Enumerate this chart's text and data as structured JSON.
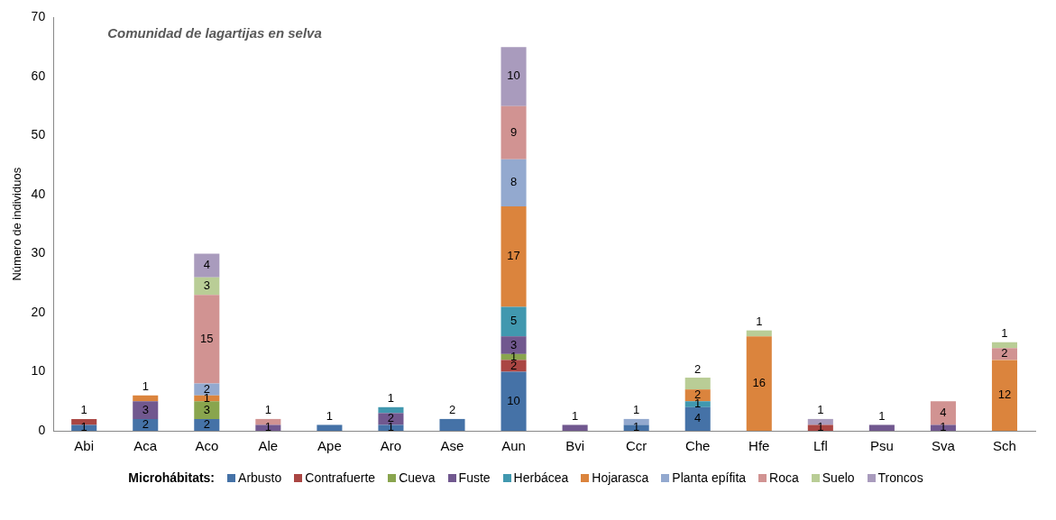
{
  "chart_data": {
    "type": "bar",
    "title": "Comunidad de lagartijas en selva",
    "ylabel": "Número de individuos",
    "legend_title": "Microhábitats:",
    "categories": [
      "Abi",
      "Aca",
      "Aco",
      "Ale",
      "Ape",
      "Aro",
      "Ase",
      "Aun",
      "Bvi",
      "Ccr",
      "Che",
      "Hfe",
      "Lfl",
      "Psu",
      "Sva",
      "Sch"
    ],
    "series": [
      {
        "name": "Arbusto",
        "color": "#4572a7",
        "values": [
          1,
          2,
          2,
          null,
          1,
          1,
          2,
          10,
          null,
          1,
          4,
          null,
          null,
          null,
          null,
          null
        ]
      },
      {
        "name": "Contrafuerte",
        "color": "#aa4643",
        "values": [
          1,
          null,
          null,
          null,
          null,
          null,
          null,
          2,
          null,
          null,
          null,
          null,
          1,
          null,
          null,
          null
        ]
      },
      {
        "name": "Cueva",
        "color": "#89a54e",
        "values": [
          null,
          null,
          3,
          null,
          null,
          null,
          null,
          1,
          null,
          null,
          null,
          null,
          null,
          null,
          null,
          null
        ]
      },
      {
        "name": "Fuste",
        "color": "#71588f",
        "values": [
          null,
          3,
          null,
          1,
          null,
          2,
          null,
          3,
          1,
          null,
          null,
          null,
          null,
          1,
          1,
          null
        ]
      },
      {
        "name": "Herbácea",
        "color": "#4198af",
        "values": [
          null,
          null,
          null,
          null,
          null,
          1,
          null,
          5,
          null,
          null,
          1,
          null,
          null,
          null,
          null,
          null
        ]
      },
      {
        "name": "Hojarasca",
        "color": "#db843d",
        "values": [
          null,
          1,
          1,
          null,
          null,
          null,
          null,
          17,
          null,
          null,
          2,
          16,
          null,
          null,
          null,
          12
        ]
      },
      {
        "name": "Planta epífita",
        "color": "#93a9cf",
        "values": [
          null,
          null,
          2,
          null,
          null,
          null,
          null,
          8,
          null,
          1,
          null,
          null,
          null,
          null,
          null,
          null
        ]
      },
      {
        "name": "Roca",
        "color": "#d19392",
        "values": [
          null,
          null,
          15,
          1,
          null,
          null,
          null,
          9,
          null,
          null,
          null,
          null,
          null,
          null,
          4,
          2
        ]
      },
      {
        "name": "Suelo",
        "color": "#b9cd96",
        "values": [
          null,
          null,
          3,
          null,
          null,
          null,
          null,
          null,
          null,
          null,
          2,
          1,
          null,
          null,
          null,
          1
        ]
      },
      {
        "name": "Troncos",
        "color": "#a99bbd",
        "values": [
          null,
          null,
          4,
          null,
          null,
          null,
          null,
          10,
          null,
          null,
          null,
          null,
          1,
          null,
          null,
          null
        ]
      }
    ],
    "stacked": true,
    "data_labels": true,
    "ylim": [
      0,
      70
    ],
    "yticks": [
      0,
      10,
      20,
      30,
      40,
      50,
      60,
      70
    ],
    "grid": false,
    "legend": "bottom"
  }
}
